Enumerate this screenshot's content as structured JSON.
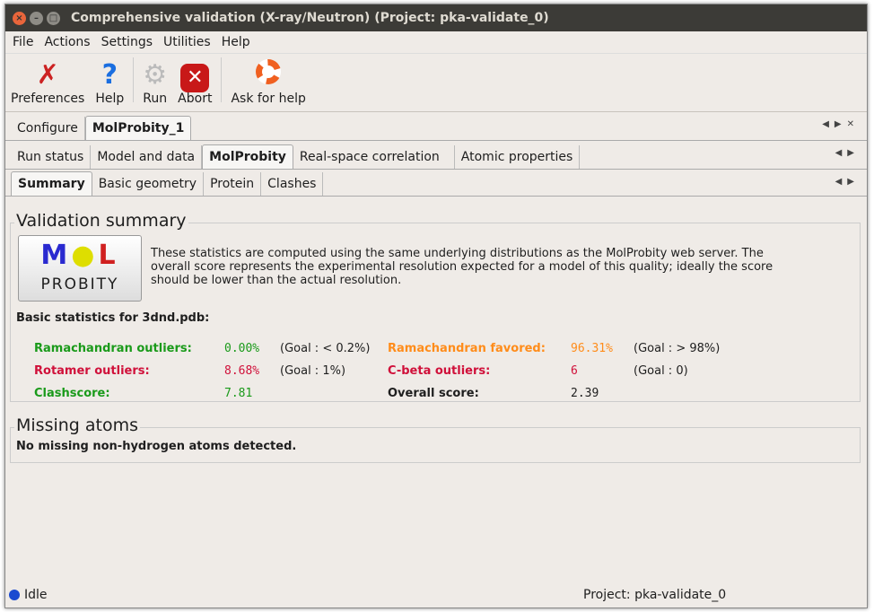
{
  "window": {
    "title": "Comprehensive validation (X-ray/Neutron) (Project: pka-validate_0)"
  },
  "menu": [
    "File",
    "Actions",
    "Settings",
    "Utilities",
    "Help"
  ],
  "toolbar": [
    {
      "label": "Preferences",
      "icon": "wrench-screwdriver-icon"
    },
    {
      "label": "Help",
      "icon": "question-icon"
    },
    {
      "label": "Run",
      "icon": "gear-icon"
    },
    {
      "label": "Abort",
      "icon": "stop-icon"
    },
    {
      "label": "Ask for help",
      "icon": "lifebuoy-icon"
    }
  ],
  "tabs1": [
    "Configure",
    "MolProbity_1"
  ],
  "tabs2": [
    "Run status",
    "Model and data",
    "MolProbity",
    "Real-space correlation",
    "Atomic properties"
  ],
  "tabs3": [
    "Summary",
    "Basic geometry",
    "Protein",
    "Clashes"
  ],
  "summary": {
    "heading": "Validation summary",
    "logo_text": "MOL PROBITY",
    "description": "These statistics are computed using the same underlying distributions as the MolProbity web server.  The overall score represents the experimental resolution expected for a model of this quality; ideally the score should be lower than the actual resolution.",
    "basic": "Basic statistics for 3dnd.pdb:",
    "stats": [
      {
        "label": "Ramachandran outliers:",
        "value": "0.00%",
        "goal": "(Goal : < 0.2%)",
        "color": "#1a9a1a"
      },
      {
        "label": "Ramachandran favored:",
        "value": "96.31%",
        "goal": "(Goal : > 98%)",
        "color": "#ff8c1a"
      },
      {
        "label": "Rotamer outliers:",
        "value": "8.68%",
        "goal": "(Goal : 1%)",
        "color": "#d0103a"
      },
      {
        "label": "C-beta outliers:",
        "value": "6",
        "goal": "(Goal : 0)",
        "color": "#d0103a"
      },
      {
        "label": "Clashscore:",
        "value": "7.81",
        "goal": "",
        "color": "#1a9a1a"
      },
      {
        "label": "Overall score:",
        "value": "2.39",
        "goal": "",
        "color": "#1e1e1e"
      }
    ]
  },
  "missing": {
    "heading": "Missing atoms",
    "text": "No missing non-hydrogen atoms detected."
  },
  "status": {
    "state": "Idle",
    "project": "Project: pka-validate_0"
  }
}
